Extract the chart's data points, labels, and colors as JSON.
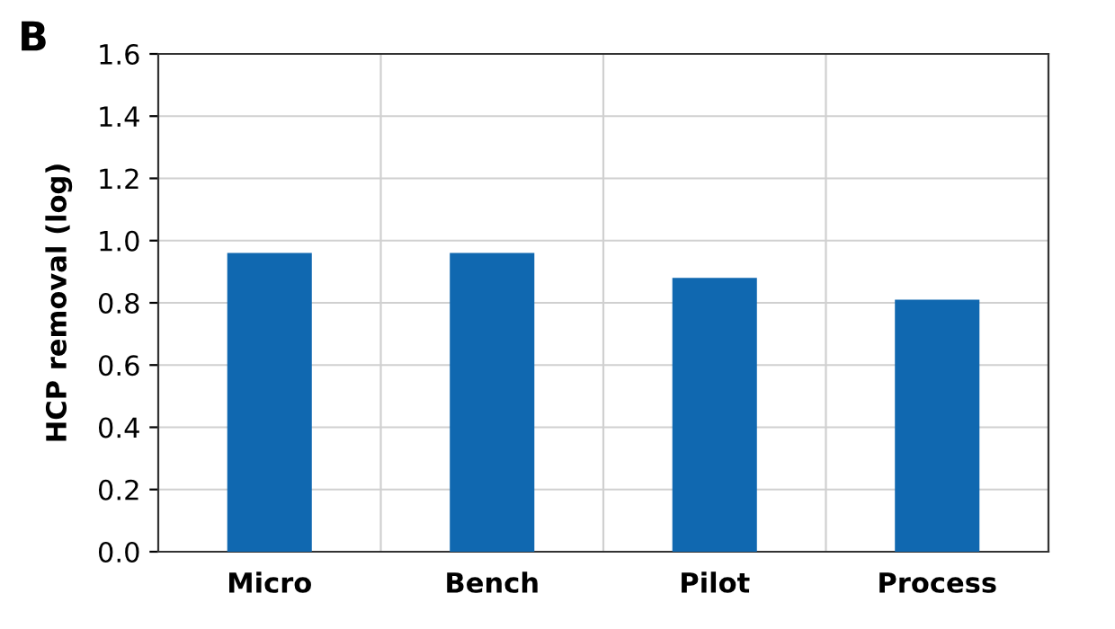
{
  "chart_data": {
    "type": "bar",
    "title": "B",
    "ylabel": "HCP removal (log)",
    "categories": [
      "Micro",
      "Bench",
      "Pilot",
      "Process"
    ],
    "values": [
      0.96,
      0.96,
      0.88,
      0.81
    ],
    "color": "#1068b0",
    "ylim": [
      0,
      1.6
    ],
    "yticks": [
      {
        "value": 0,
        "label": "0.0"
      },
      {
        "value": 0.2,
        "label": "0.2"
      },
      {
        "value": 0.4,
        "label": "0.4"
      },
      {
        "value": 0.6,
        "label": "0.6"
      },
      {
        "value": 0.8,
        "label": "0.8"
      },
      {
        "value": 1,
        "label": "1.0"
      },
      {
        "value": 1.2,
        "label": "1.2"
      },
      {
        "value": 1.4,
        "label": "1.4"
      },
      {
        "value": 1.6,
        "label": "1.6"
      }
    ],
    "grid": true
  }
}
